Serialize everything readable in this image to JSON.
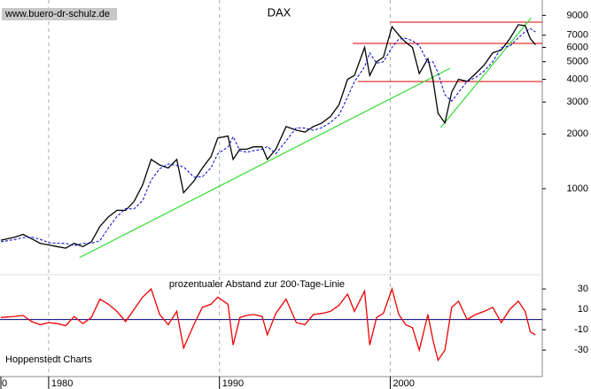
{
  "chart_data": [
    {
      "type": "line",
      "title": "DAX",
      "source": "www.buero-dr-schulz.de",
      "credit": "Hoppenstedt Charts",
      "log_y": true,
      "xlim": [
        1977.15,
        2008.9
      ],
      "xticks": [
        1980,
        1990,
        2000
      ],
      "x_edge_label": "0",
      "ylim": [
        336,
        10940
      ],
      "yticks": [
        1000,
        2000,
        3000,
        4000,
        5000,
        6000,
        7000,
        9000
      ],
      "x": [
        1977.2,
        1978,
        1978.5,
        1979,
        1979.5,
        1980,
        1980.5,
        1981,
        1981.5,
        1982,
        1982.5,
        1983,
        1983.5,
        1984,
        1984.5,
        1985,
        1985.5,
        1986,
        1986.5,
        1987,
        1987.5,
        1987.9,
        1988.5,
        1989,
        1989.5,
        1989.9,
        1990.5,
        1990.8,
        1991.2,
        1991.6,
        1992,
        1992.5,
        1992.8,
        1993.3,
        1993.9,
        1994.5,
        1995,
        1995.5,
        1996,
        1996.5,
        1997,
        1997.5,
        1997.9,
        1998.5,
        1998.8,
        1999.2,
        1999.6,
        2000.1,
        2000.5,
        2000.9,
        2001.3,
        2001.7,
        2002.2,
        2002.5,
        2002.8,
        2003.2,
        2003.6,
        2004,
        2004.5,
        2005,
        2005.5,
        2006,
        2006.5,
        2007,
        2007.5,
        2007.9,
        2008.2,
        2008.5
      ],
      "series": [
        {
          "name": "DAX",
          "color": "#000000",
          "dashed": false,
          "values": [
            520,
            540,
            560,
            530,
            500,
            490,
            480,
            470,
            500,
            480,
            510,
            620,
            700,
            760,
            760,
            850,
            1050,
            1450,
            1350,
            1300,
            1450,
            950,
            1100,
            1300,
            1500,
            1900,
            1950,
            1450,
            1650,
            1650,
            1700,
            1700,
            1450,
            1650,
            2200,
            2100,
            2050,
            2200,
            2300,
            2500,
            2900,
            4000,
            4200,
            6000,
            4200,
            5000,
            5300,
            7800,
            7000,
            6400,
            6000,
            4300,
            5200,
            4000,
            2600,
            2300,
            3400,
            4000,
            3900,
            4300,
            4800,
            5600,
            5800,
            6700,
            8000,
            7900,
            6700,
            6200
          ]
        },
        {
          "name": "200-Tage-Linie",
          "color": "#0000cc",
          "dashed": true,
          "values": [
            510,
            524,
            538,
            541,
            526,
            505,
            500,
            500,
            485,
            500,
            500,
            517,
            609,
            704,
            776,
            773,
            861,
            1115,
            1286,
            1368,
            1343,
            1319,
            1158,
            1161,
            1304,
            1557,
            1696,
            1933,
            1618,
            1587,
            1619,
            1650,
            1706,
            1557,
            1833,
            2165,
            2158,
            2095,
            2170,
            2315,
            2544,
            3200,
            3889,
            4688,
            5600,
            4902,
            5000,
            6000,
            6667,
            6737,
            6522,
            6143,
            4952,
            5000,
            4333,
            3286,
            3036,
            3390,
            3900,
            4095,
            4444,
            5000,
            5979,
            6091,
            6780,
            7315,
            7614,
            7294
          ]
        }
      ],
      "hlines": [
        {
          "value": 8260,
          "color": "#dd0000",
          "x": [
            2000.0,
            2008.9
          ]
        },
        {
          "value": 6310,
          "color": "#dd0000",
          "x": [
            1997.8,
            2008.9
          ]
        },
        {
          "value": 3890,
          "color": "#dd0000",
          "x": [
            1998.1,
            2008.9
          ]
        }
      ],
      "trendlines": [
        {
          "color": "#33dd33",
          "x": [
            1981.8,
            2003.5
          ],
          "values": [
            417,
            4600
          ]
        },
        {
          "color": "#33dd33",
          "x": [
            2002.95,
            2008.25
          ],
          "values": [
            2170,
            8730
          ]
        }
      ]
    },
    {
      "type": "line",
      "title": "prozentualer Abstand zur 200-Tage-Linie",
      "log_y": false,
      "xlim": [
        1977.15,
        2008.9
      ],
      "ylim": [
        -56,
        44
      ],
      "yticks": [
        30,
        10,
        -10,
        -30
      ],
      "x": [
        1977.2,
        1978,
        1978.5,
        1979,
        1979.5,
        1980,
        1980.5,
        1981,
        1981.5,
        1982,
        1982.5,
        1983,
        1983.5,
        1984,
        1984.5,
        1985,
        1985.5,
        1986,
        1986.5,
        1987,
        1987.5,
        1987.9,
        1988.5,
        1989,
        1989.5,
        1989.9,
        1990.5,
        1990.8,
        1991.2,
        1991.6,
        1992,
        1992.5,
        1992.8,
        1993.3,
        1993.9,
        1994.5,
        1995,
        1995.5,
        1996,
        1996.5,
        1997,
        1997.5,
        1997.9,
        1998.5,
        1998.8,
        1999.2,
        1999.6,
        2000.1,
        2000.5,
        2000.9,
        2001.3,
        2001.7,
        2002.2,
        2002.5,
        2002.8,
        2003.2,
        2003.6,
        2004,
        2004.5,
        2005,
        2005.5,
        2006,
        2006.5,
        2007,
        2007.5,
        2007.9,
        2008.2,
        2008.5
      ],
      "series": [
        {
          "name": "Abstand",
          "color": "#ee0000",
          "dashed": false,
          "values": [
            2,
            3,
            4,
            -2,
            -5,
            -3,
            -4,
            -6,
            3,
            -4,
            2,
            20,
            15,
            8,
            -2,
            10,
            22,
            30,
            5,
            -5,
            8,
            -28,
            -5,
            12,
            15,
            22,
            15,
            -25,
            2,
            4,
            5,
            3,
            -15,
            6,
            20,
            -3,
            -5,
            5,
            6,
            8,
            14,
            25,
            8,
            28,
            -25,
            2,
            6,
            30,
            5,
            -5,
            -8,
            -30,
            5,
            -20,
            -40,
            -30,
            12,
            18,
            0,
            5,
            8,
            12,
            -3,
            10,
            18,
            8,
            -12,
            -15
          ]
        }
      ],
      "hlines": [
        {
          "value": 0,
          "color": "#000080",
          "x": [
            1977.15,
            2008.9
          ]
        }
      ],
      "trendlines": []
    }
  ]
}
